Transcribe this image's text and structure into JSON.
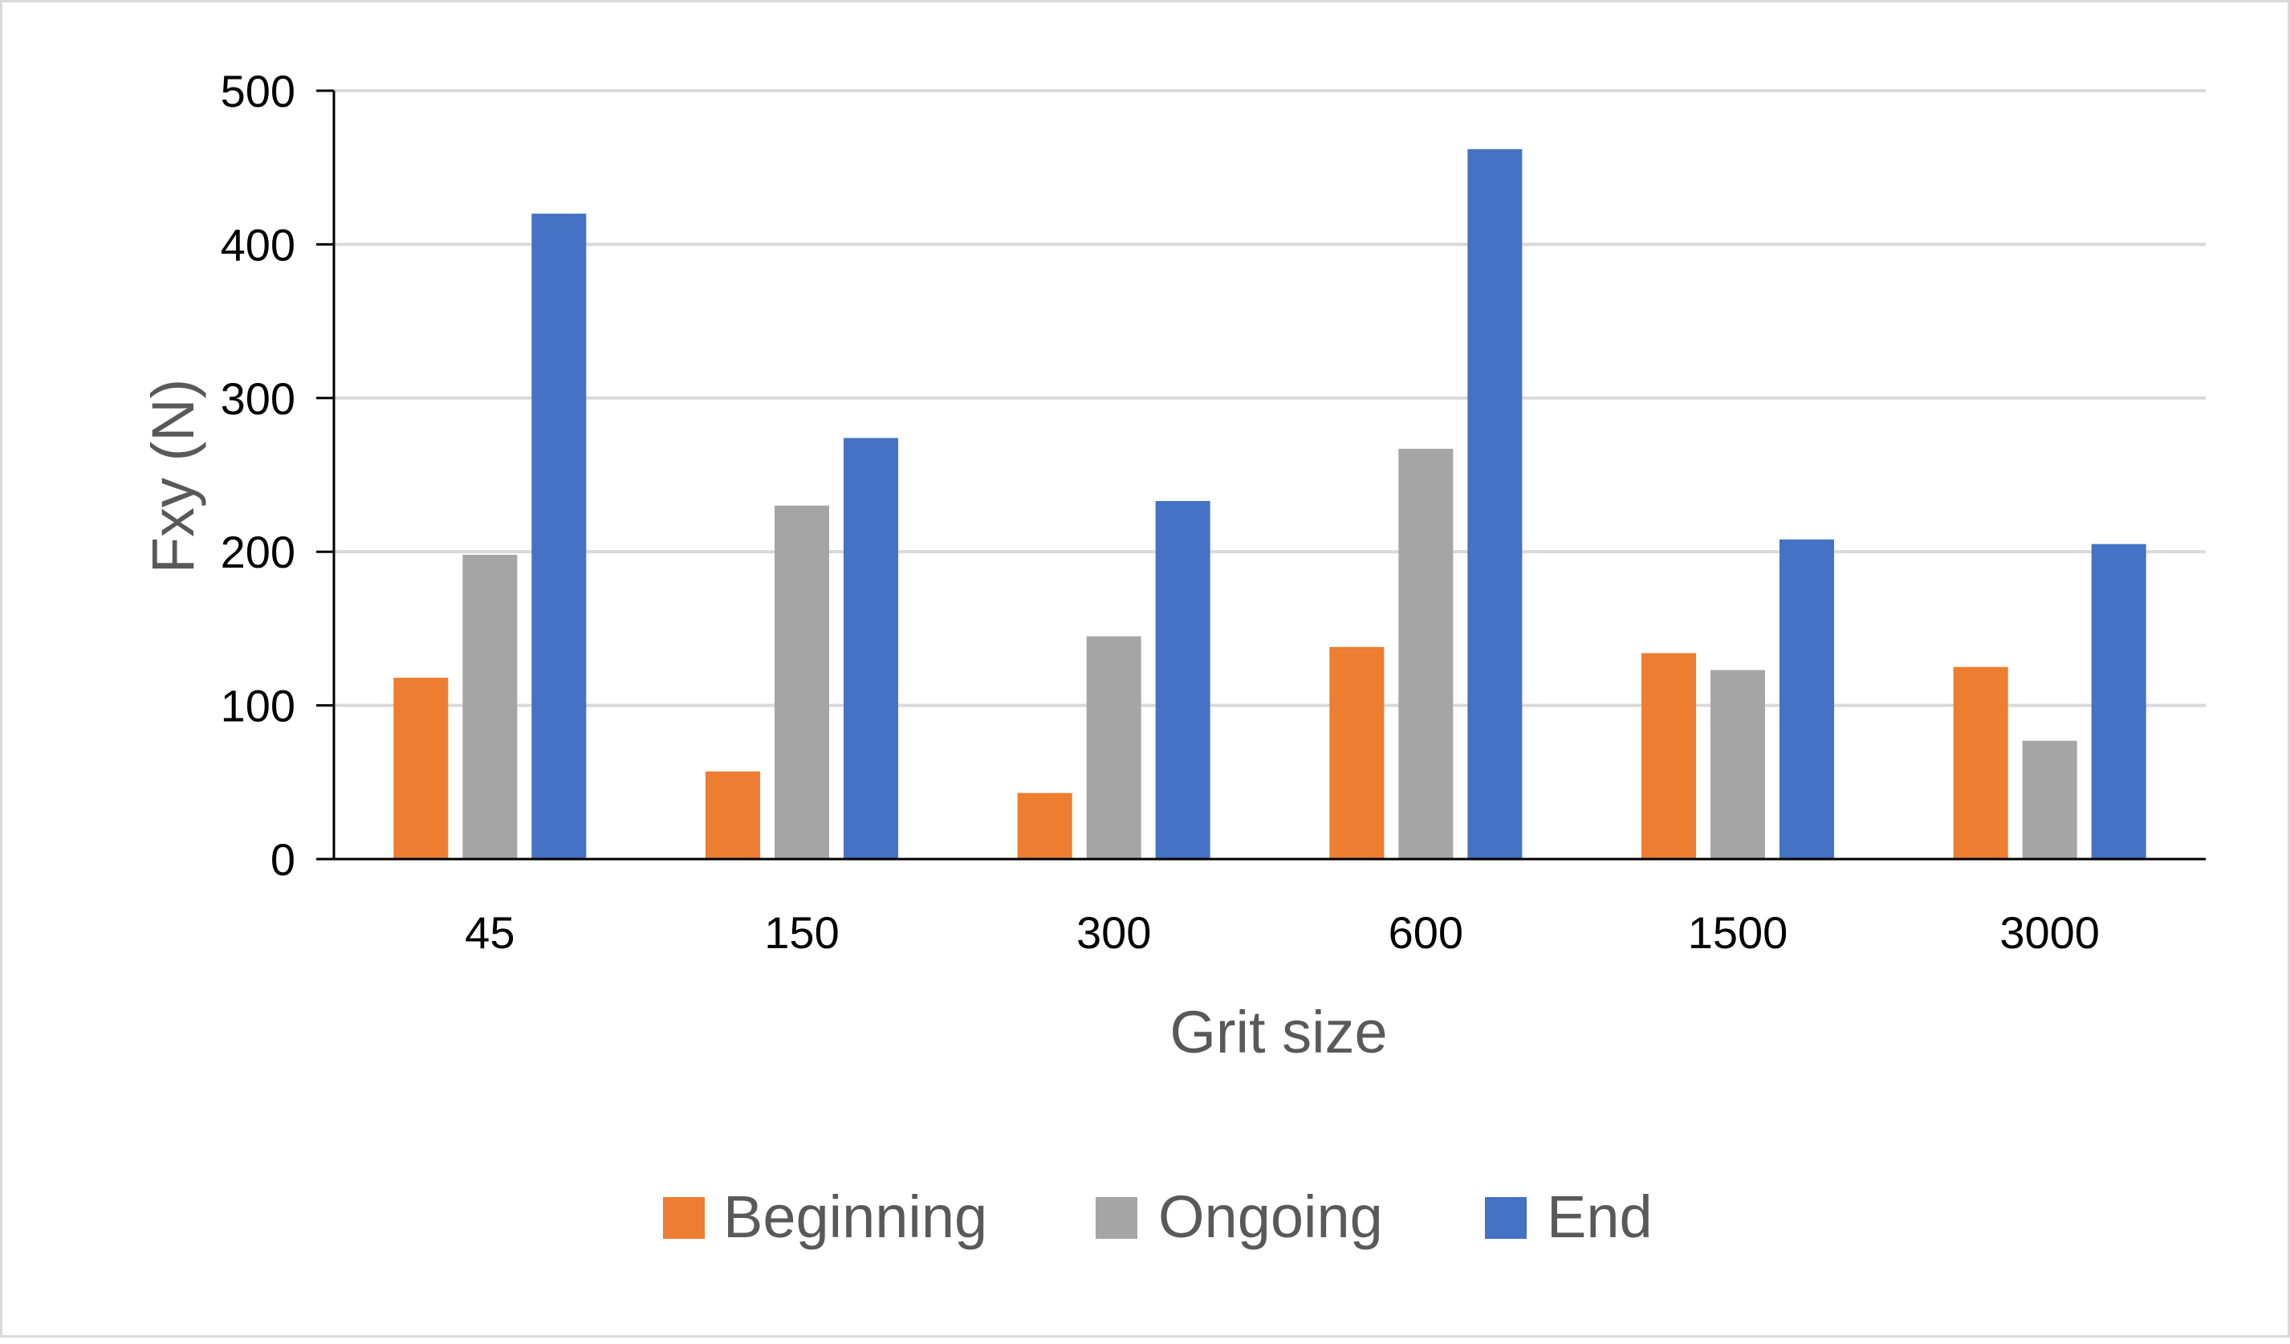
{
  "chart_data": {
    "type": "bar",
    "title": "",
    "xlabel": "Grit size",
    "ylabel": "Fxy (N)",
    "categories": [
      "45",
      "150",
      "300",
      "600",
      "1500",
      "3000"
    ],
    "series": [
      {
        "name": "Beginning",
        "color": "#ED7D31",
        "values": [
          118,
          57,
          43,
          138,
          134,
          125
        ]
      },
      {
        "name": "Ongoing",
        "color": "#A5A5A5",
        "values": [
          198,
          230,
          145,
          267,
          123,
          77
        ]
      },
      {
        "name": "End",
        "color": "#4472C4",
        "values": [
          420,
          274,
          233,
          462,
          208,
          205
        ]
      }
    ],
    "ylim": [
      0,
      500
    ],
    "yticks": [
      0,
      100,
      200,
      300,
      400,
      500
    ],
    "ytick_labels": [
      "0",
      "100",
      "200",
      "300",
      "400",
      "500"
    ],
    "grid": true,
    "legend_position": "bottom"
  },
  "colors": {
    "gridline": "#d9d9d9",
    "axis": "#000000",
    "axis_title": "#595959",
    "tick_label": "#000000",
    "legend_text": "#595959",
    "frame_border": "#d9d9d9"
  }
}
